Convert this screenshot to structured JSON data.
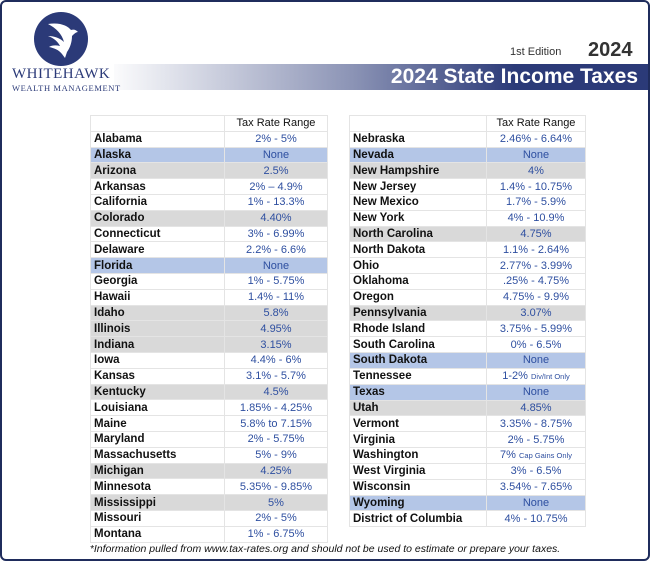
{
  "logo": {
    "name": "WHITEHAWK",
    "subtitle": "WEALTH MANAGEMENT"
  },
  "header": {
    "edition": "1st Edition",
    "year": "2024",
    "title": "2024 State Income Taxes"
  },
  "column_header": "Tax Rate Range",
  "left_table": [
    {
      "state": "Alabama",
      "rate": "2% - 5%",
      "style": "white"
    },
    {
      "state": "Alaska",
      "rate": "None",
      "style": "blue"
    },
    {
      "state": "Arizona",
      "rate": "2.5%",
      "style": "gray"
    },
    {
      "state": "Arkansas",
      "rate": "2% – 4.9%",
      "style": "white"
    },
    {
      "state": "California",
      "rate": "1% - 13.3%",
      "style": "white"
    },
    {
      "state": "Colorado",
      "rate": "4.40%",
      "style": "gray"
    },
    {
      "state": "Connecticut",
      "rate": "3% - 6.99%",
      "style": "white"
    },
    {
      "state": "Delaware",
      "rate": "2.2% - 6.6%",
      "style": "white"
    },
    {
      "state": "Florida",
      "rate": "None",
      "style": "blue"
    },
    {
      "state": "Georgia",
      "rate": "1% - 5.75%",
      "style": "white"
    },
    {
      "state": "Hawaii",
      "rate": "1.4% - 11%",
      "style": "white"
    },
    {
      "state": "Idaho",
      "rate": "5.8%",
      "style": "gray"
    },
    {
      "state": "Illinois",
      "rate": "4.95%",
      "style": "gray"
    },
    {
      "state": "Indiana",
      "rate": "3.15%",
      "style": "gray"
    },
    {
      "state": "Iowa",
      "rate": "4.4% - 6%",
      "style": "white"
    },
    {
      "state": "Kansas",
      "rate": "3.1% - 5.7%",
      "style": "white"
    },
    {
      "state": "Kentucky",
      "rate": "4.5%",
      "style": "gray"
    },
    {
      "state": "Louisiana",
      "rate": "1.85% - 4.25%",
      "style": "white"
    },
    {
      "state": "Maine",
      "rate": "5.8% to 7.15%",
      "style": "white"
    },
    {
      "state": "Maryland",
      "rate": "2% - 5.75%",
      "style": "white"
    },
    {
      "state": "Massachusetts",
      "rate": "5% - 9%",
      "style": "white"
    },
    {
      "state": "Michigan",
      "rate": "4.25%",
      "style": "gray"
    },
    {
      "state": "Minnesota",
      "rate": "5.35% - 9.85%",
      "style": "white"
    },
    {
      "state": "Mississippi",
      "rate": "5%",
      "style": "gray"
    },
    {
      "state": "Missouri",
      "rate": "2% - 5%",
      "style": "white"
    },
    {
      "state": "Montana",
      "rate": "1% - 6.75%",
      "style": "white"
    }
  ],
  "right_table": [
    {
      "state": "Nebraska",
      "rate": "2.46% - 6.64%",
      "style": "white"
    },
    {
      "state": "Nevada",
      "rate": "None",
      "style": "blue"
    },
    {
      "state": "New Hampshire",
      "rate": "4%",
      "style": "gray"
    },
    {
      "state": "New Jersey",
      "rate": "1.4% - 10.75%",
      "style": "white"
    },
    {
      "state": "New Mexico",
      "rate": "1.7% - 5.9%",
      "style": "white"
    },
    {
      "state": "New York",
      "rate": "4% - 10.9%",
      "style": "white"
    },
    {
      "state": "North Carolina",
      "rate": "4.75%",
      "style": "gray"
    },
    {
      "state": "North Dakota",
      "rate": "1.1% - 2.64%",
      "style": "white"
    },
    {
      "state": "Ohio",
      "rate": "2.77% - 3.99%",
      "style": "white"
    },
    {
      "state": "Oklahoma",
      "rate": ".25% - 4.75%",
      "style": "white"
    },
    {
      "state": "Oregon",
      "rate": "4.75% - 9.9%",
      "style": "white"
    },
    {
      "state": "Pennsylvania",
      "rate": "3.07%",
      "style": "gray"
    },
    {
      "state": "Rhode Island",
      "rate": "3.75% - 5.99%",
      "style": "white"
    },
    {
      "state": "South Carolina",
      "rate": "0% - 6.5%",
      "style": "white"
    },
    {
      "state": "South Dakota",
      "rate": "None",
      "style": "blue"
    },
    {
      "state": "Tennessee",
      "rate": "1-2%",
      "note": "Div/Int Only",
      "style": "white"
    },
    {
      "state": "Texas",
      "rate": "None",
      "style": "blue"
    },
    {
      "state": "Utah",
      "rate": "4.85%",
      "style": "gray"
    },
    {
      "state": "Vermont",
      "rate": "3.35% - 8.75%",
      "style": "white"
    },
    {
      "state": "Virginia",
      "rate": "2% - 5.75%",
      "style": "white"
    },
    {
      "state": "Washington",
      "rate": "7%",
      "note": "Cap Gains Only",
      "style": "white"
    },
    {
      "state": "West Virginia",
      "rate": "3% - 6.5%",
      "style": "white"
    },
    {
      "state": "Wisconsin",
      "rate": "3.54% - 7.65%",
      "style": "white"
    },
    {
      "state": "Wyoming",
      "rate": "None",
      "style": "blue"
    },
    {
      "state": "District of Columbia",
      "rate": "4% - 10.75%",
      "style": "white"
    }
  ],
  "footer": "*Information pulled from www.tax-rates.org and should not be used to estimate or prepare your taxes.",
  "colors": {
    "navy": "#2b3a78",
    "rate_text": "#2e4fa0",
    "gray_row": "#d9d9d9",
    "blue_row": "#b4c6e7"
  }
}
